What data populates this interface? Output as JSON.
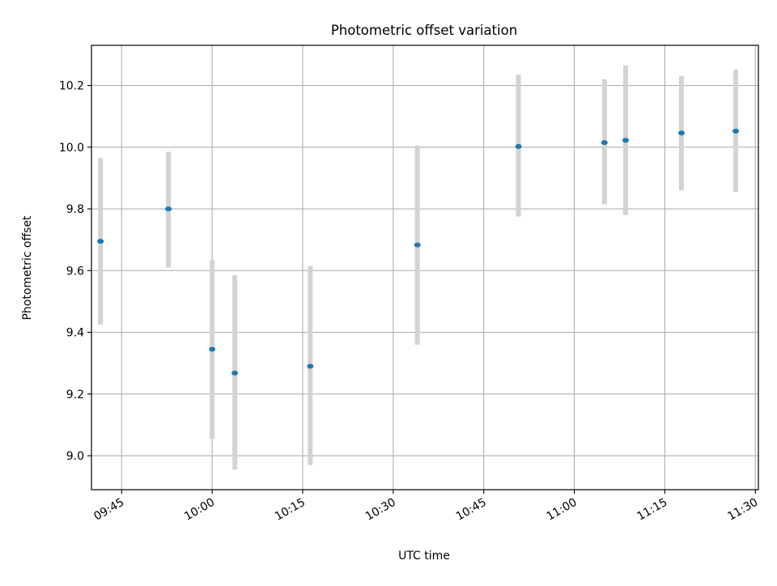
{
  "chart_data": {
    "type": "scatter",
    "title": "Photometric offset variation",
    "xlabel": "UTC time",
    "ylabel": "Photometric offset",
    "x_unit": "HH:MM UTC",
    "xlim": [
      "09:40:00",
      "11:30:30"
    ],
    "ylim": [
      8.89,
      10.33
    ],
    "x_ticks": [
      "09:45",
      "10:00",
      "10:15",
      "10:30",
      "10:45",
      "11:00",
      "11:15",
      "11:30"
    ],
    "y_ticks": [
      9.0,
      9.2,
      9.4,
      9.6,
      9.8,
      10.0,
      10.2
    ],
    "y_tick_labels": [
      "9.0",
      "9.2",
      "9.4",
      "9.6",
      "9.8",
      "10.0",
      "10.2"
    ],
    "grid": true,
    "points": [
      {
        "x": "09:41:30",
        "y": 9.695,
        "ylow": 9.425,
        "yhigh": 9.965
      },
      {
        "x": "09:52:45",
        "y": 9.8,
        "ylow": 9.61,
        "yhigh": 9.985
      },
      {
        "x": "10:00:00",
        "y": 9.345,
        "ylow": 9.055,
        "yhigh": 9.635
      },
      {
        "x": "10:03:45",
        "y": 9.268,
        "ylow": 8.955,
        "yhigh": 9.585
      },
      {
        "x": "10:16:15",
        "y": 9.29,
        "ylow": 8.97,
        "yhigh": 9.615
      },
      {
        "x": "10:34:00",
        "y": 9.683,
        "ylow": 9.36,
        "yhigh": 10.005
      },
      {
        "x": "10:50:45",
        "y": 10.002,
        "ylow": 9.775,
        "yhigh": 10.235
      },
      {
        "x": "11:05:00",
        "y": 10.015,
        "ylow": 9.815,
        "yhigh": 10.22
      },
      {
        "x": "11:08:30",
        "y": 10.022,
        "ylow": 9.78,
        "yhigh": 10.265
      },
      {
        "x": "11:17:45",
        "y": 10.046,
        "ylow": 9.86,
        "yhigh": 10.23
      },
      {
        "x": "11:26:45",
        "y": 10.052,
        "ylow": 9.855,
        "yhigh": 10.252
      }
    ],
    "colors": {
      "marker": "#1f77b4",
      "errorbar": "#d3d3d3",
      "grid": "#b0b0b0",
      "axes": "#000000"
    }
  }
}
